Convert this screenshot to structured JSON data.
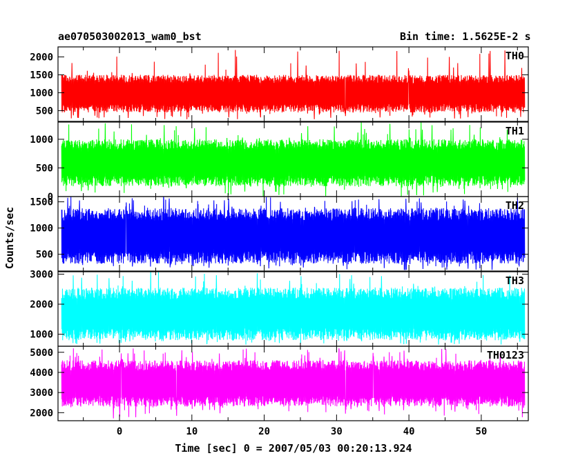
{
  "chart_data": {
    "type": "line",
    "title_left": "ae070503002013_wam0_bst",
    "title_right": "Bin time: 1.5625E-2 s",
    "xlabel": "Time [sec] 0 = 2007/05/03 00:20:13.924",
    "ylabel": "Counts/sec",
    "xlim": [
      -8.5,
      56.5
    ],
    "data_x_range": [
      -8.0,
      56.0
    ],
    "x_ticks": [
      0,
      10,
      20,
      30,
      40,
      50
    ],
    "x_tick_labels": [
      "0",
      "10",
      "20",
      "30",
      "40",
      "50"
    ],
    "grid": false,
    "panels": [
      {
        "name": "TH0",
        "color": "#ff0000",
        "ylim": [
          200,
          2280
        ],
        "y_ticks": [
          500,
          1000,
          1500,
          2000
        ],
        "y_tick_labels": [
          "500",
          "1000",
          "1500",
          "2000"
        ],
        "low_level": 450,
        "high_level": 1500,
        "min_value": 250,
        "max_value": 2200
      },
      {
        "name": "TH1",
        "color": "#00ff00",
        "ylim": [
          0,
          1300
        ],
        "y_ticks": [
          0,
          500,
          1000
        ],
        "y_tick_labels": [
          "0",
          "500",
          "1000"
        ],
        "low_level": 180,
        "high_level": 1000,
        "min_value": 0,
        "max_value": 1300
      },
      {
        "name": "TH2",
        "color": "#0000ff",
        "ylim": [
          180,
          1600
        ],
        "y_ticks": [
          500,
          1000,
          1500
        ],
        "y_tick_labels": [
          "500",
          "1000",
          "1500"
        ],
        "low_level": 320,
        "high_level": 1380,
        "min_value": 200,
        "max_value": 1600
      },
      {
        "name": "TH3",
        "color": "#00ffff",
        "ylim": [
          600,
          3080
        ],
        "y_ticks": [
          1000,
          2000,
          3000
        ],
        "y_tick_labels": [
          "1000",
          "2000",
          "3000"
        ],
        "low_level": 800,
        "high_level": 2550,
        "min_value": 650,
        "max_value": 3100
      },
      {
        "name": "TH0123",
        "color": "#ff00ff",
        "ylim": [
          1600,
          5300
        ],
        "y_ticks": [
          2000,
          3000,
          4000,
          5000
        ],
        "y_tick_labels": [
          "2000",
          "3000",
          "4000",
          "5000"
        ],
        "low_level": 2300,
        "high_level": 4600,
        "min_value": 1700,
        "max_value": 5200
      }
    ]
  }
}
